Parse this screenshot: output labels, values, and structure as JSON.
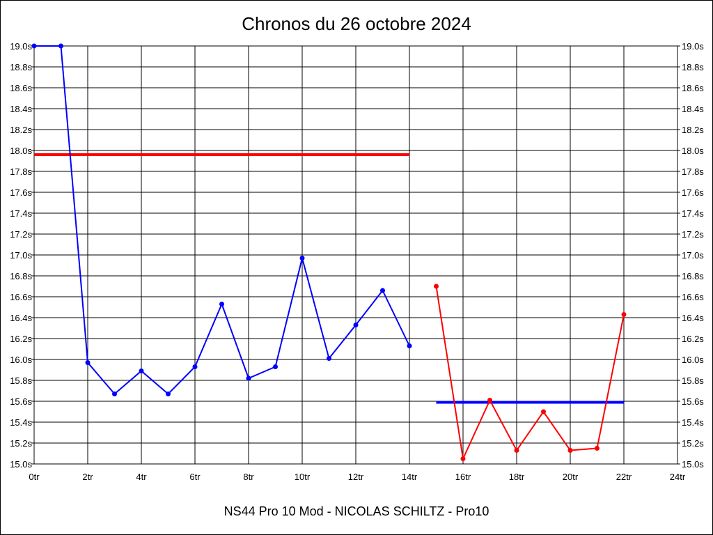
{
  "chart_data": {
    "type": "line",
    "title": "Chronos du 26 octobre 2024",
    "xlabel": "NS44 Pro 10 Mod - NICOLAS SCHILTZ - Pro10",
    "ylabel": "",
    "xlim": [
      0,
      24
    ],
    "ylim": [
      15.0,
      19.0
    ],
    "x_ticks": [
      "0tr",
      "2tr",
      "4tr",
      "6tr",
      "8tr",
      "10tr",
      "12tr",
      "14tr",
      "16tr",
      "18tr",
      "20tr",
      "22tr",
      "24tr"
    ],
    "y_ticks": [
      "15.0s",
      "15.2s",
      "15.4s",
      "15.6s",
      "15.8s",
      "16.0s",
      "16.2s",
      "16.4s",
      "16.6s",
      "16.8s",
      "17.0s",
      "17.2s",
      "17.4s",
      "17.6s",
      "17.8s",
      "18.0s",
      "18.2s",
      "18.4s",
      "18.6s",
      "18.8s",
      "19.0s"
    ],
    "grid": true,
    "series": [
      {
        "color": "#0000ff",
        "x": [
          0,
          1,
          2,
          3,
          4,
          5,
          6,
          7,
          8,
          9,
          10,
          11,
          12,
          13,
          14
        ],
        "y": [
          19.0,
          19.0,
          15.97,
          15.67,
          15.89,
          15.67,
          15.93,
          16.53,
          15.82,
          15.93,
          16.97,
          16.01,
          16.33,
          16.66,
          16.13
        ]
      },
      {
        "color": "#ff0000",
        "x": [
          15,
          16,
          17,
          18,
          19,
          20,
          21,
          22
        ],
        "y": [
          16.7,
          15.05,
          15.61,
          15.13,
          15.5,
          15.13,
          15.15,
          16.43
        ]
      }
    ],
    "average_lines": [
      {
        "color": "#ff0000",
        "x": [
          0,
          14
        ],
        "y": 17.96
      },
      {
        "color": "#0000ff",
        "x": [
          15,
          22
        ],
        "y": 15.59
      }
    ]
  }
}
